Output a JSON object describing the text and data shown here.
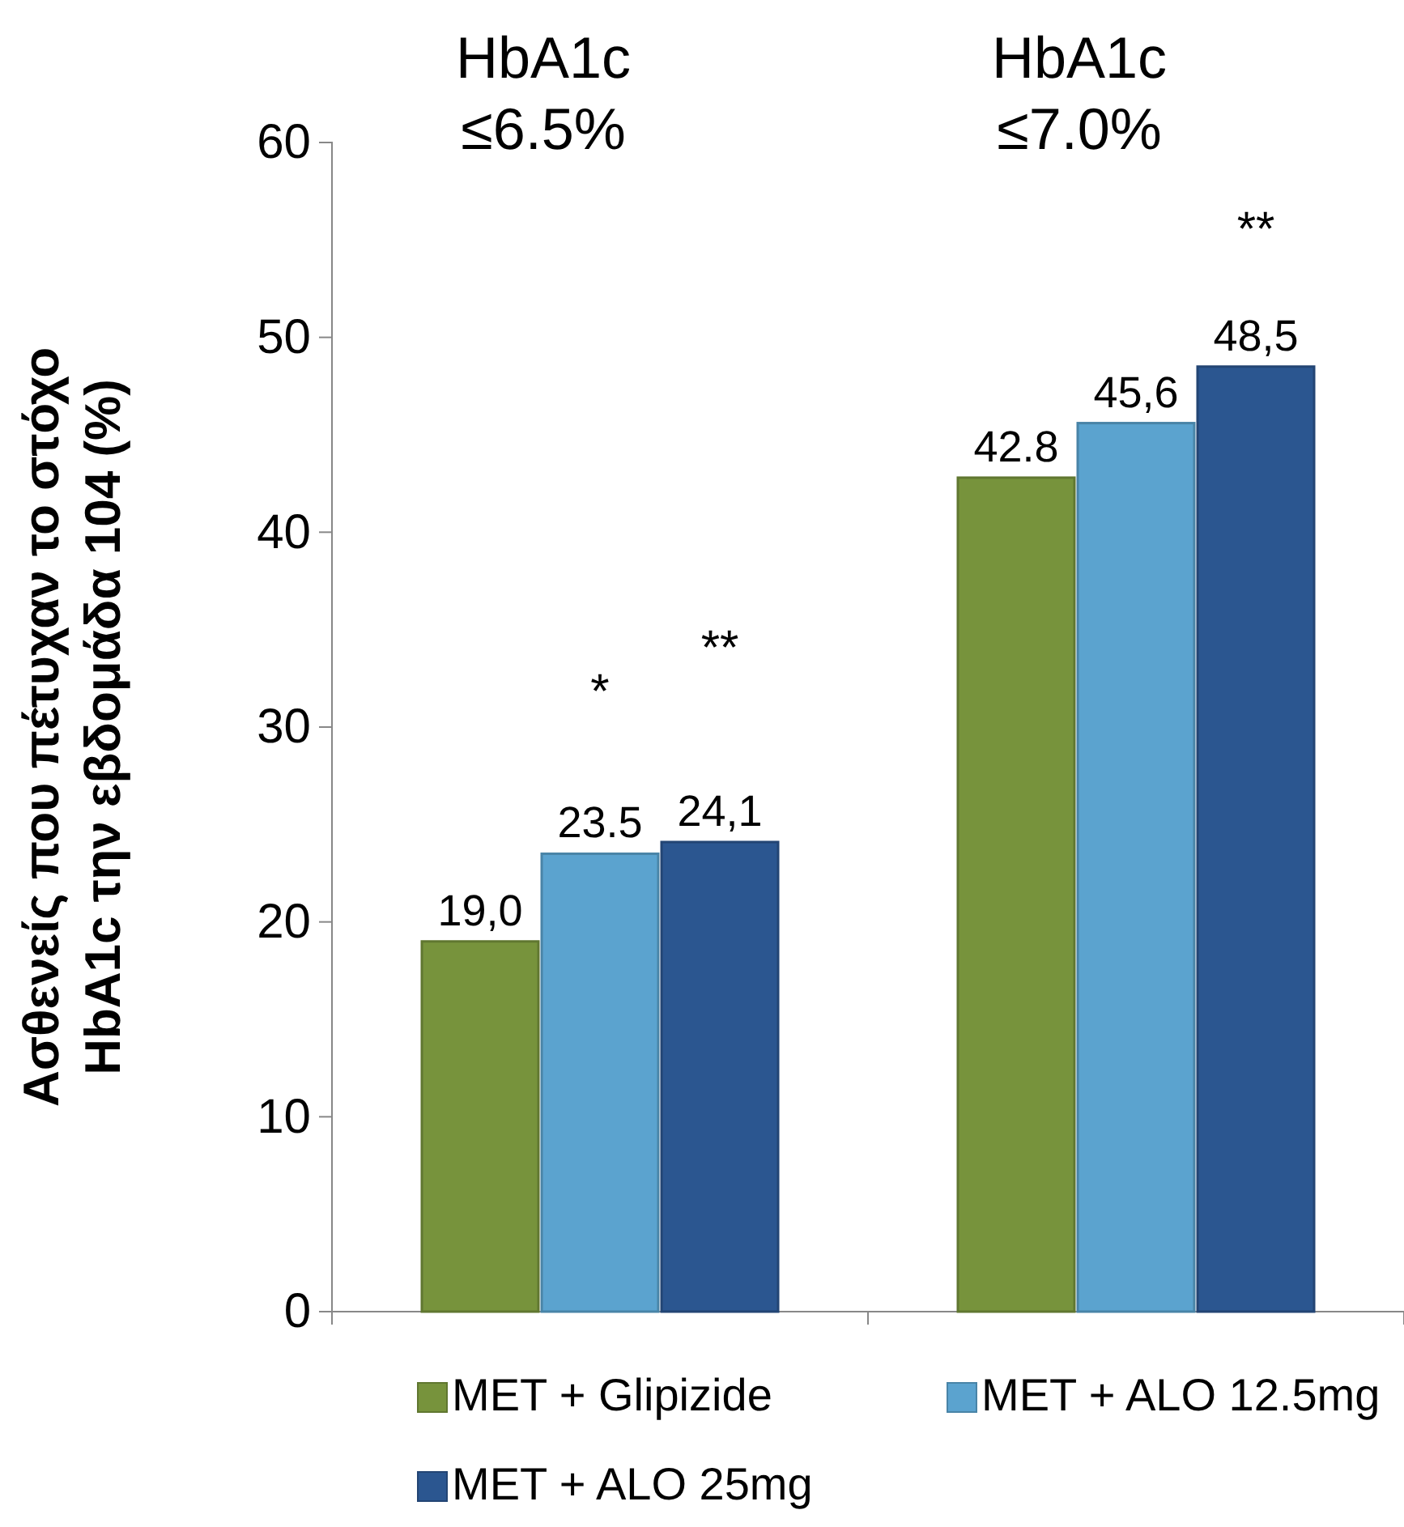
{
  "chart_data": {
    "type": "bar",
    "ylabel": "Ασθενείς που πέτυχαν το στόχο\nHbA1c την εβδομάδα 104 (%)",
    "categories": [
      "HbA1c ≤6.5%",
      "HbA1c ≤7.0%"
    ],
    "series": [
      {
        "name": "MET + Glipizide",
        "color": "#77933c",
        "values": [
          19.0,
          42.8
        ],
        "value_labels": [
          "19,0",
          "42.8"
        ]
      },
      {
        "name": "MET + ALO 12.5mg",
        "color": "#5ba3cf",
        "values": [
          23.5,
          45.6
        ],
        "value_labels": [
          "23.5",
          "45,6"
        ]
      },
      {
        "name": "MET + ALO 25mg",
        "color": "#2b5690",
        "values": [
          24.1,
          48.5
        ],
        "value_labels": [
          "24,1",
          "48,5"
        ]
      }
    ],
    "ylim": [
      0,
      60
    ],
    "yticks": [
      0,
      10,
      20,
      30,
      40,
      50,
      60
    ],
    "grid": false,
    "legend": "bottom",
    "annotations": [
      "*",
      "**",
      "**"
    ]
  }
}
